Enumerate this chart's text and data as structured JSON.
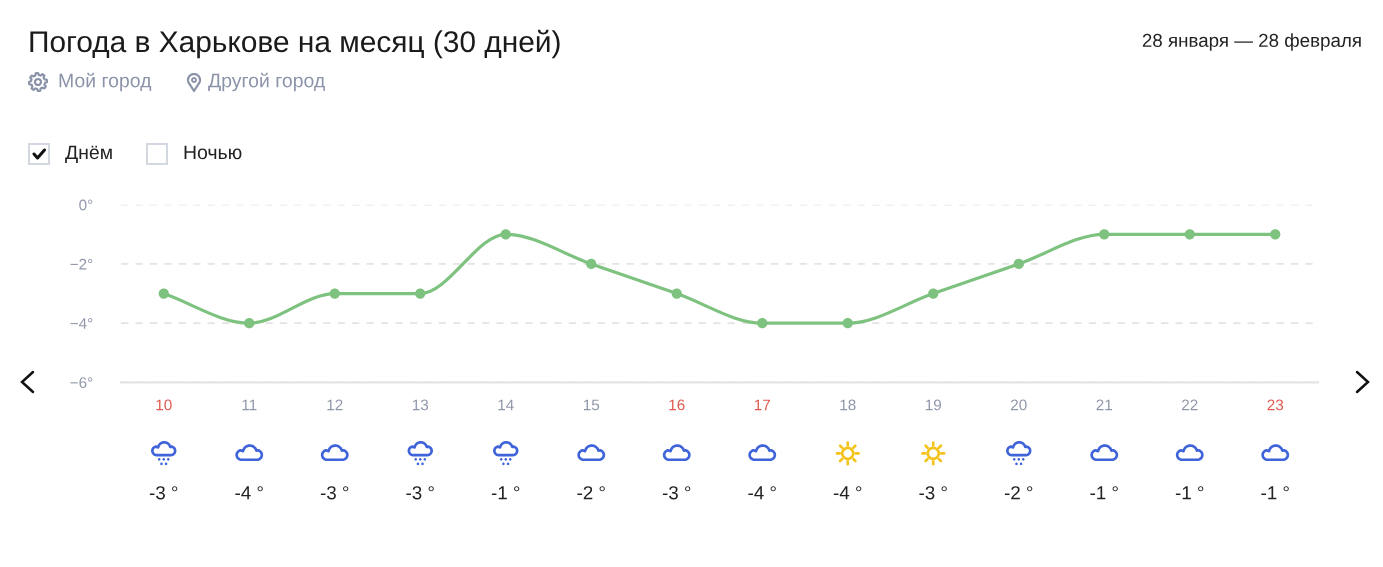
{
  "chart_data": {
    "type": "line",
    "title": "Погода в Харькове на месяц (30 дней)",
    "subtitle": "28 января — 28 февраля",
    "annotations": [
      "Мой город",
      "Другой город",
      "Днём",
      "Ночью"
    ],
    "categories": [
      "10",
      "11",
      "12",
      "13",
      "14",
      "15",
      "16",
      "17",
      "18",
      "19",
      "20",
      "21",
      "22",
      "23"
    ],
    "series": [
      {
        "color": "#7ec27f",
        "values": [
          -3,
          -4,
          -3,
          -3,
          -1,
          -2,
          -3,
          -4,
          -4,
          -3,
          -2,
          -1,
          -1,
          -1
        ],
        "value_labels": [
          "-3 °",
          "-4 °",
          "-3 °",
          "-3 °",
          "-1 °",
          "-2 °",
          "-3 °",
          "-4 °",
          "-4 °",
          "-3 °",
          "-2 °",
          "-1 °",
          "-1 °",
          "-1 °"
        ]
      }
    ],
    "ylim": [
      -6,
      0
    ],
    "yticks": [
      {
        "value": 0,
        "label": "0°"
      },
      {
        "value": -2,
        "label": "−2°"
      },
      {
        "value": -4,
        "label": "−4°"
      },
      {
        "value": -6,
        "label": "−6°"
      }
    ],
    "grid": "y",
    "marker": "circle",
    "line_style": "solid"
  }
}
